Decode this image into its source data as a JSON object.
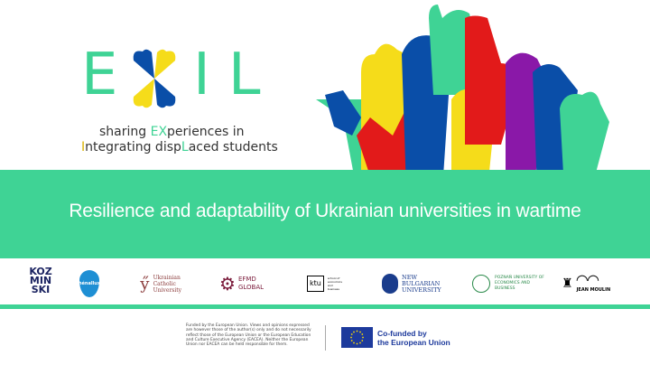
{
  "logo": {
    "letters_left": "E",
    "letters_right": "IL",
    "tagline1_pre": "sharing ",
    "tagline1_hl": "EX",
    "tagline1_post": "periences in",
    "tagline2_hl1": "I",
    "tagline2_mid": "ntegrating disp",
    "tagline2_hl2": "L",
    "tagline2_post": "aced students"
  },
  "title": "Resilience and adaptability of Ukrainian universities in wartime",
  "colors": {
    "green": "#3fd395",
    "blue": "#0a4ea8",
    "yellow": "#f5dc1a",
    "red": "#e21a1a",
    "purple": "#8a18a8",
    "eu_blue": "#1d3a9c"
  },
  "partners": [
    {
      "name": "KOZ MIN SKI",
      "sub": "UNIVERSITY"
    },
    {
      "name": "hénallux"
    },
    {
      "name": "Ukrainian Catholic University"
    },
    {
      "name": "EFMD GLOBAL"
    },
    {
      "name": "ktu",
      "sub": "school of economics and business"
    },
    {
      "name": "NEW BULGARIAN UNIVERSITY"
    },
    {
      "name": "POZNAŃ UNIVERSITY OF ECONOMICS AND BUSINESS"
    },
    {
      "name": "JEAN MOULIN",
      "sub": "UNIVERSITÉ LYON 3"
    }
  ],
  "footer": {
    "disclaimer": "Funded by the European Union. Views and opinions expressed are however those of the author(s) only and do not necessarily reflect those of the European Union or the European Education and Culture Executive Agency (EACEA). Neither the European Union nor EACEA can be held responsible for them.",
    "cofunded_line1": "Co-funded by",
    "cofunded_line2": "the European Union"
  }
}
